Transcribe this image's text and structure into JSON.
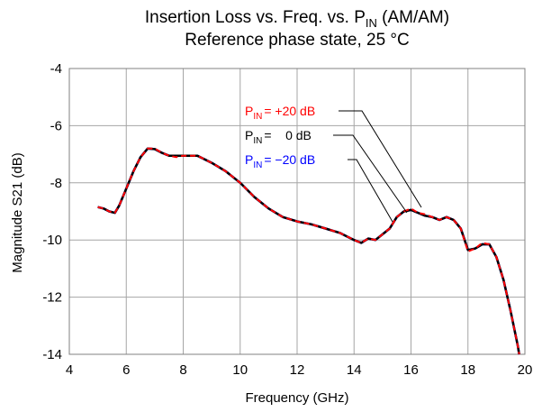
{
  "chart_data": {
    "type": "line",
    "title": {
      "main": "Insertion Loss vs. Freq. vs. P",
      "sub": "IN",
      "end": " (AM/AM)"
    },
    "subtitle": "Reference phase state, 25 °C",
    "x_label": "Frequency (GHz)",
    "y_label": "Magnitude S21 (dB)",
    "xlim": [
      4,
      20
    ],
    "xticks": [
      4,
      6,
      8,
      10,
      12,
      14,
      16,
      18,
      20
    ],
    "ylim": [
      -14,
      -4
    ],
    "yticks": [
      -4,
      -6,
      -8,
      -10,
      -12,
      -14
    ],
    "grid": true,
    "x": [
      5.0,
      5.2,
      5.4,
      5.6,
      5.75,
      6.0,
      6.25,
      6.5,
      6.75,
      7.0,
      7.25,
      7.5,
      7.75,
      8.0,
      8.5,
      9.0,
      9.5,
      10.0,
      10.5,
      11.0,
      11.5,
      12.0,
      12.5,
      13.0,
      13.5,
      14.0,
      14.25,
      14.5,
      14.75,
      15.0,
      15.25,
      15.5,
      15.75,
      16.0,
      16.25,
      16.5,
      16.75,
      17.0,
      17.25,
      17.5,
      17.75,
      18.0,
      18.25,
      18.5,
      18.75,
      19.0,
      19.25,
      19.5,
      19.75,
      19.8
    ],
    "series": [
      {
        "name": "P",
        "name_sub": "IN",
        "name_rest": "=    0 dB",
        "color": "#000000",
        "style": "solid",
        "values": [
          -8.85,
          -8.9,
          -9.0,
          -9.05,
          -8.8,
          -8.2,
          -7.6,
          -7.1,
          -6.8,
          -6.82,
          -6.95,
          -7.05,
          -7.05,
          -7.05,
          -7.05,
          -7.3,
          -7.6,
          -8.0,
          -8.5,
          -8.9,
          -9.2,
          -9.35,
          -9.45,
          -9.6,
          -9.75,
          -10.0,
          -10.1,
          -9.95,
          -10.0,
          -9.8,
          -9.6,
          -9.2,
          -9.0,
          -8.95,
          -9.05,
          -9.15,
          -9.2,
          -9.3,
          -9.2,
          -9.3,
          -9.6,
          -10.35,
          -10.3,
          -10.15,
          -10.15,
          -10.6,
          -11.4,
          -12.5,
          -13.7,
          -14.0
        ]
      },
      {
        "name": "P",
        "name_sub": "IN",
        "name_rest": "= −20 dB",
        "color": "#0000ff",
        "style": "solid",
        "values": [
          -8.85,
          -8.9,
          -9.0,
          -9.05,
          -8.8,
          -8.2,
          -7.6,
          -7.1,
          -6.8,
          -6.82,
          -6.95,
          -7.05,
          -7.05,
          -7.05,
          -7.05,
          -7.3,
          -7.6,
          -8.0,
          -8.5,
          -8.9,
          -9.2,
          -9.35,
          -9.45,
          -9.6,
          -9.75,
          -10.0,
          -10.1,
          -9.95,
          -10.0,
          -9.8,
          -9.6,
          -9.2,
          -9.0,
          -8.95,
          -9.05,
          -9.15,
          -9.2,
          -9.3,
          -9.2,
          -9.3,
          -9.6,
          -10.35,
          -10.3,
          -10.15,
          -10.15,
          -10.6,
          -11.4,
          -12.5,
          -13.7,
          -14.0
        ]
      },
      {
        "name": "P",
        "name_sub": "IN",
        "name_rest": "= +20 dB",
        "color": "#ff0000",
        "style": "dashed",
        "values": [
          -8.85,
          -8.9,
          -9.0,
          -9.05,
          -8.8,
          -8.2,
          -7.6,
          -7.1,
          -6.8,
          -6.8,
          -6.95,
          -7.05,
          -7.1,
          -7.05,
          -7.05,
          -7.3,
          -7.6,
          -8.0,
          -8.5,
          -8.9,
          -9.2,
          -9.35,
          -9.45,
          -9.6,
          -9.75,
          -10.0,
          -10.1,
          -9.95,
          -10.0,
          -9.8,
          -9.6,
          -9.2,
          -9.0,
          -8.9,
          -9.05,
          -9.1,
          -9.2,
          -9.3,
          -9.2,
          -9.3,
          -9.6,
          -10.4,
          -10.3,
          -10.1,
          -10.15,
          -10.6,
          -11.4,
          -12.5,
          -13.7,
          -14.0
        ]
      }
    ]
  }
}
